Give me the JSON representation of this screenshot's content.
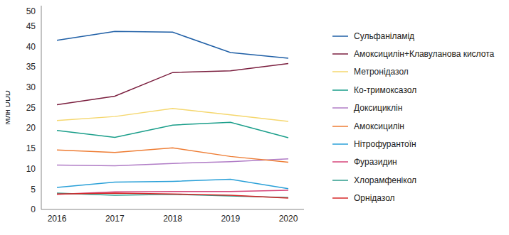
{
  "chart_data": {
    "type": "line",
    "y_label": "Млн DDD",
    "categories": [
      "2016",
      "2017",
      "2018",
      "2019",
      "2020"
    ],
    "ylim": [
      0,
      50
    ],
    "yticks": [
      0,
      5,
      10,
      15,
      20,
      25,
      30,
      35,
      40,
      45,
      50
    ],
    "grid": false,
    "legend": "right",
    "series": [
      {
        "name": "Сульфаніламід",
        "color": "#1f5fa6",
        "values": [
          41.5,
          43.7,
          43.5,
          38.5,
          37.1
        ]
      },
      {
        "name": "Амоксицилін+Клавуланова кислота",
        "color": "#7b1f3f",
        "values": [
          25.7,
          27.8,
          33.6,
          34.0,
          35.8
        ]
      },
      {
        "name": "Метронідазол",
        "color": "#f5d76e",
        "values": [
          21.8,
          22.8,
          24.8,
          23.2,
          21.6
        ]
      },
      {
        "name": "Ко-тримоксазол",
        "color": "#1a9e8a",
        "values": [
          19.4,
          17.7,
          20.7,
          21.4,
          17.6
        ]
      },
      {
        "name": "Доксициклін",
        "color": "#b07cc6",
        "values": [
          10.9,
          10.7,
          11.3,
          11.7,
          12.4
        ]
      },
      {
        "name": "Амоксицилін",
        "color": "#ee7d34",
        "values": [
          14.6,
          14.0,
          15.1,
          13.0,
          11.6
        ]
      },
      {
        "name": "Нітрофурантоїн",
        "color": "#2aa0d8",
        "values": [
          5.4,
          6.7,
          6.9,
          7.4,
          5.1
        ]
      },
      {
        "name": "Фуразидин",
        "color": "#d6457a",
        "values": [
          3.7,
          4.3,
          4.4,
          4.4,
          4.7
        ]
      },
      {
        "name": "Хлорамфенікол",
        "color": "#2e9c8c",
        "values": [
          4.0,
          3.5,
          3.7,
          3.3,
          2.9
        ]
      },
      {
        "name": "Орнідазол",
        "color": "#d62728",
        "values": [
          3.8,
          4.0,
          3.8,
          3.5,
          2.8
        ]
      }
    ]
  }
}
